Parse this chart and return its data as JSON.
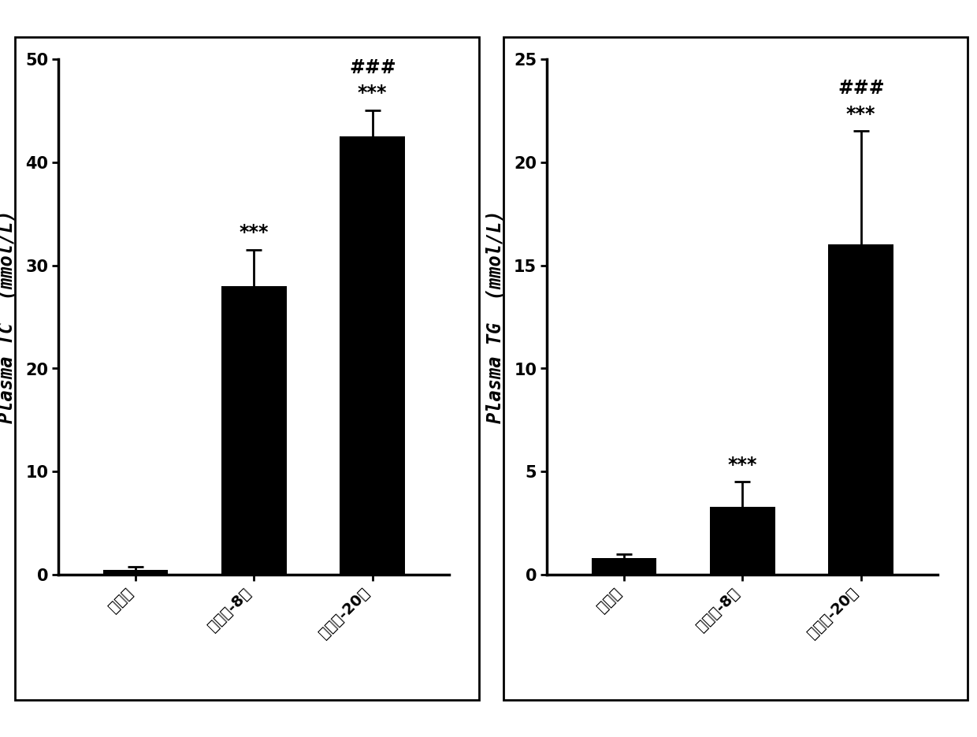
{
  "left": {
    "ylabel": "Plasma TC  (mmol/L)",
    "categories": [
      "对照组",
      "模型组-8周",
      "模型组-20周"
    ],
    "values": [
      0.5,
      28.0,
      42.5
    ],
    "errors": [
      0.3,
      3.5,
      2.5
    ],
    "ylim": [
      0,
      50
    ],
    "yticks": [
      0,
      10,
      20,
      30,
      40,
      50
    ],
    "annotations": [
      {
        "bar": 0,
        "texts": []
      },
      {
        "bar": 1,
        "texts": [
          "***"
        ]
      },
      {
        "bar": 2,
        "texts": [
          "###",
          "***"
        ]
      }
    ]
  },
  "right": {
    "ylabel": "Plasma TG  (mmol/L)",
    "categories": [
      "对照组",
      "模型组-8周",
      "模型组-20周"
    ],
    "values": [
      0.8,
      3.3,
      16.0
    ],
    "errors": [
      0.2,
      1.2,
      5.5
    ],
    "ylim": [
      0,
      25
    ],
    "yticks": [
      0,
      5,
      10,
      15,
      20,
      25
    ],
    "annotations": [
      {
        "bar": 0,
        "texts": []
      },
      {
        "bar": 1,
        "texts": [
          "***"
        ]
      },
      {
        "bar": 2,
        "texts": [
          "###",
          "***"
        ]
      }
    ]
  },
  "bar_color": "#000000",
  "bar_width": 0.55,
  "tick_fontsize": 15,
  "label_fontsize": 17,
  "annot_fontsize": 17,
  "xtick_fontsize": 14,
  "background_color": "#ffffff"
}
